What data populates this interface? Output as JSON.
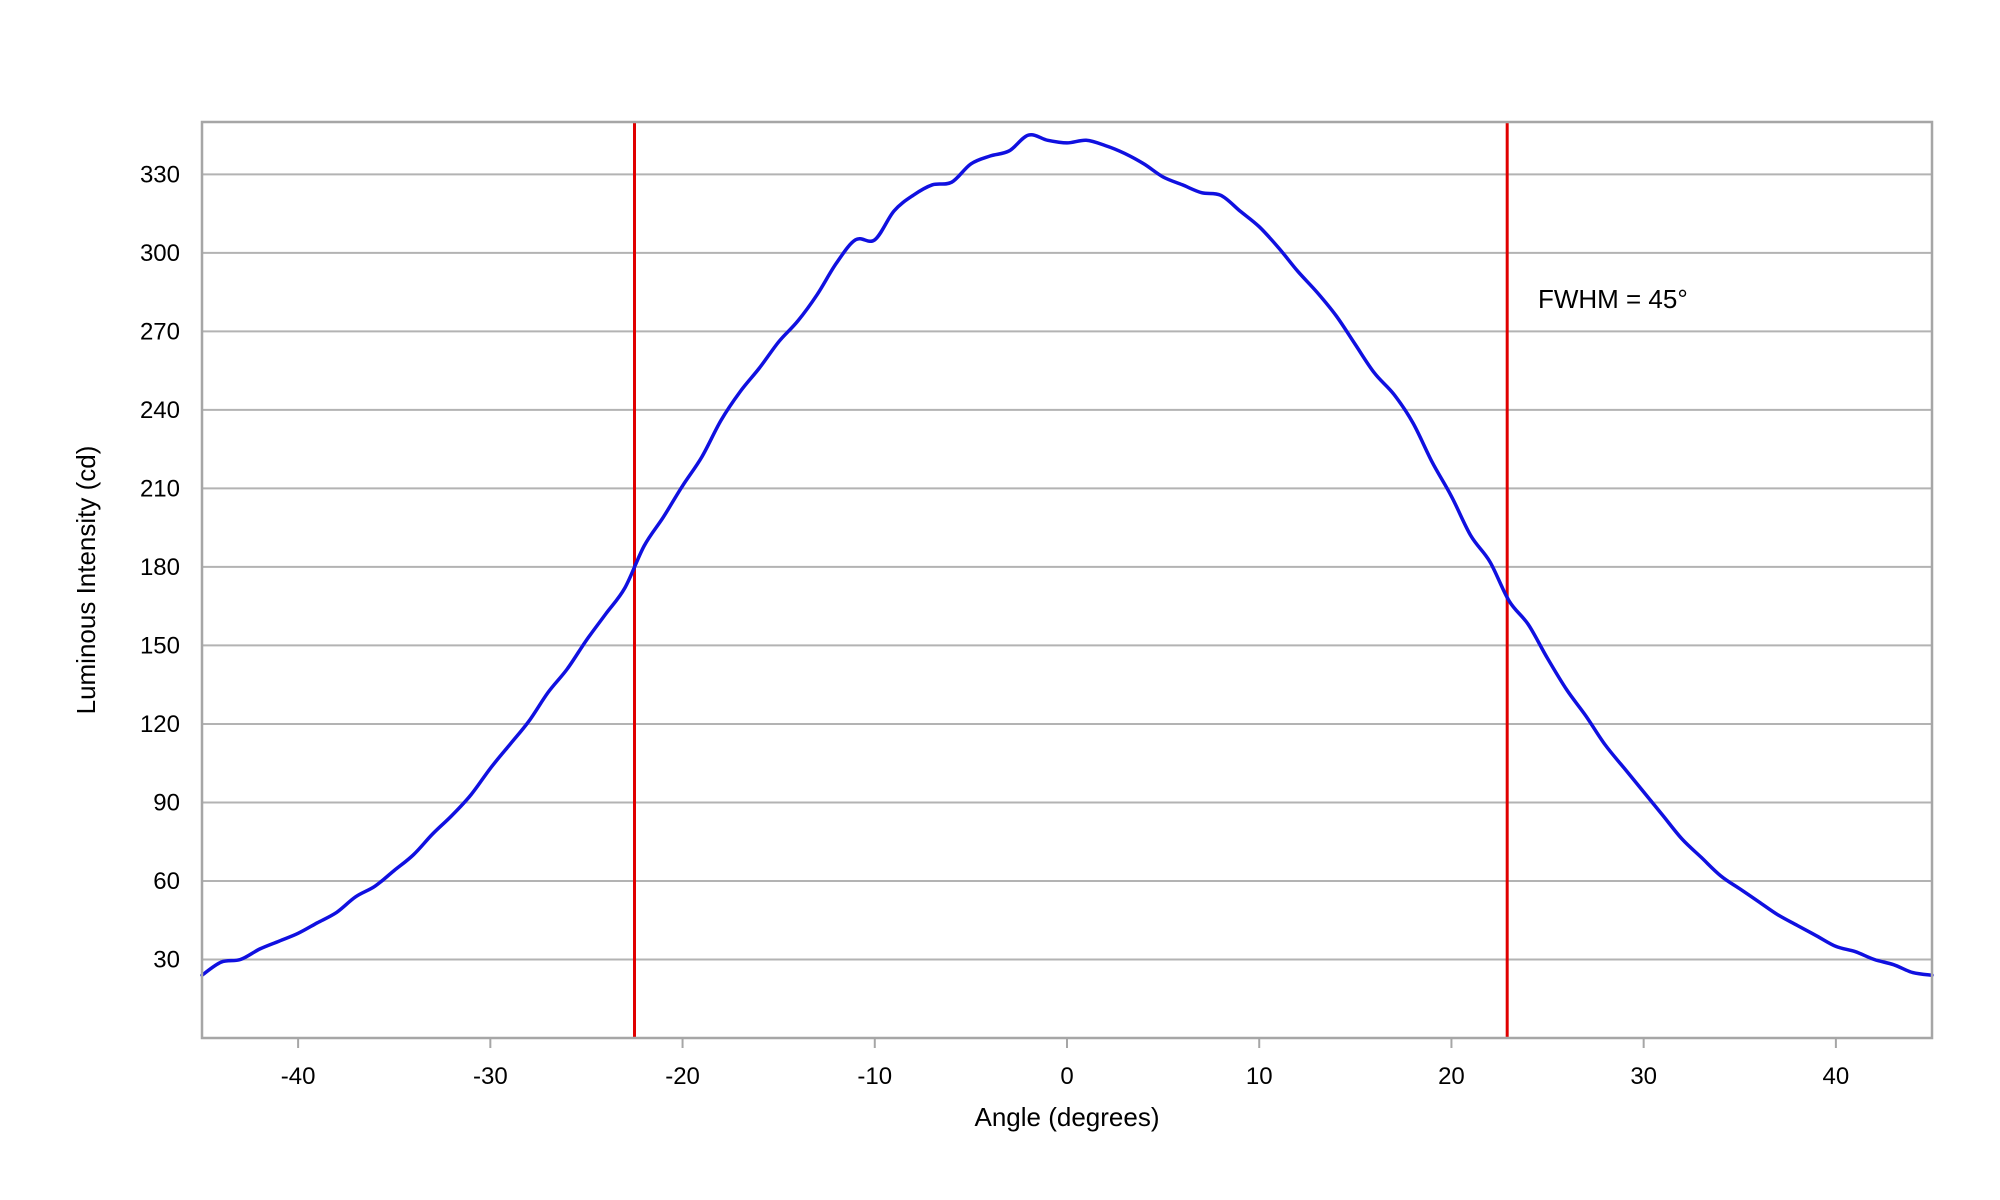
{
  "chart_data": {
    "type": "line",
    "title": "",
    "xlabel": "Angle (degrees)",
    "ylabel": "Luminous Intensity (cd)",
    "xlim": [
      -45,
      45
    ],
    "ylim": [
      0,
      350
    ],
    "x_ticks": [
      -40,
      -30,
      -20,
      -10,
      0,
      10,
      20,
      30,
      40
    ],
    "y_ticks": [
      30,
      60,
      90,
      120,
      150,
      180,
      210,
      240,
      270,
      300,
      330
    ],
    "grid": "horizontal",
    "legend": "none",
    "colors": {
      "series": "#1010e0",
      "markers": "#e00000",
      "grid": "#b3b3b3",
      "frame": "#a6a6a6"
    },
    "series": [
      {
        "x": [
          -45,
          -44,
          -43,
          -42,
          -41,
          -40,
          -39,
          -38,
          -37,
          -36,
          -35,
          -34,
          -33,
          -32,
          -31,
          -30,
          -29,
          -28,
          -27,
          -26,
          -25,
          -24,
          -23,
          -22,
          -21,
          -20,
          -19,
          -18,
          -17,
          -16,
          -15,
          -14,
          -13,
          -12,
          -11,
          -10,
          -9,
          -8,
          -7,
          -6,
          -5,
          -4,
          -3,
          -2,
          -1,
          0,
          1,
          2,
          3,
          4,
          5,
          6,
          7,
          8,
          9,
          10,
          11,
          12,
          13,
          14,
          15,
          16,
          17,
          18,
          19,
          20,
          21,
          22,
          23,
          24,
          25,
          26,
          27,
          28,
          29,
          30,
          31,
          32,
          33,
          34,
          35,
          36,
          37,
          38,
          39,
          40,
          41,
          42,
          43,
          44,
          45
        ],
        "y": [
          24,
          29,
          30,
          34,
          37,
          40,
          44,
          48,
          54,
          58,
          64,
          70,
          78,
          85,
          93,
          103,
          112,
          121,
          132,
          141,
          152,
          162,
          172,
          188,
          199,
          211,
          222,
          236,
          247,
          256,
          266,
          274,
          284,
          296,
          305,
          305,
          316,
          322,
          326,
          327,
          334,
          337,
          339,
          345,
          343,
          342,
          343,
          341,
          338,
          334,
          329,
          326,
          323,
          322,
          316,
          310,
          302,
          293,
          285,
          276,
          265,
          254,
          246,
          235,
          220,
          207,
          192,
          182,
          167,
          158,
          145,
          133,
          123,
          112,
          103,
          94,
          85,
          76,
          69,
          62,
          57,
          52,
          47,
          43,
          39,
          35,
          33,
          30,
          28,
          25,
          24
        ]
      }
    ],
    "vertical_markers": [
      -22.5,
      22.9
    ],
    "annotation": {
      "text": "FWHM = 45°",
      "x": 24.5,
      "y": 282
    }
  }
}
